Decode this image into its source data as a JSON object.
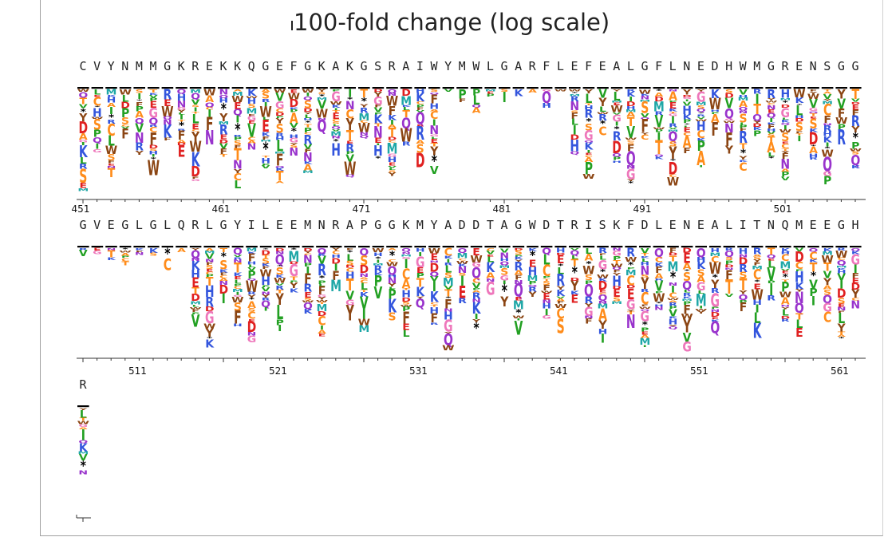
{
  "title": "100-fold change (log scale)",
  "chart_data": {
    "type": "sequence-logo",
    "title": "100-fold change (log scale)",
    "positions_per_row": 56,
    "start_position": 451,
    "rows": [
      {
        "wildtype": "CVYNMMGKREKKQGEFGKAKGSRAIWYMWLGARFLEFEALGFLNEDHWMGRENSGG",
        "tick_labels": [
          "451",
          "461",
          "471",
          "481",
          "491",
          "501"
        ]
      },
      {
        "wildtype": "GVEGLGLQRLGYILEEMNRAPGGKMYADDTAGWDTRISKFDLENEALITNQMEEGH",
        "tick_labels": [
          "511",
          "521",
          "531",
          "541",
          "551",
          "561"
        ]
      },
      {
        "wildtype": "R",
        "tick_labels": []
      }
    ],
    "residue_colors": {
      "hydrophobic_green": "#22a022",
      "basic_blue": "#3355dd",
      "polar_orange": "#ff8c1a",
      "acidic_red": "#e02020",
      "gly_pink": "#ee77bb",
      "purple": "#9933cc",
      "aromatic_brown": "#8b4513",
      "teal": "#1fa7a7",
      "stop": "#000000"
    }
  }
}
